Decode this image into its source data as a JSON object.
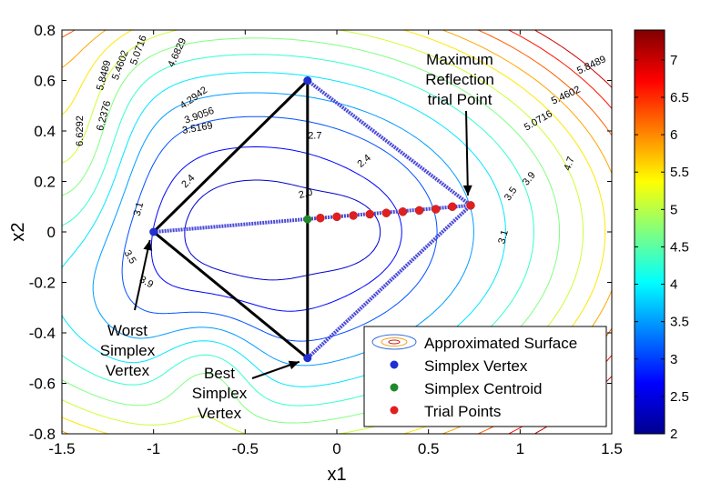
{
  "chart_data": {
    "type": "contour",
    "xlabel": "x1",
    "ylabel": "x2",
    "xlim": [
      -1.5,
      1.5
    ],
    "ylim": [
      -0.8,
      0.8
    ],
    "xticks": [
      -1.5,
      -1,
      -0.5,
      0,
      0.5,
      1,
      1.5
    ],
    "xtick_labels": [
      "-1.5",
      "-1",
      "-0.5",
      "0",
      "0.5",
      "1",
      "1.5"
    ],
    "yticks": [
      0.8,
      0.6,
      0.4,
      0.2,
      0,
      -0.2,
      -0.4,
      -0.6,
      -0.8
    ],
    "ytick_labels": [
      "0.8",
      "0.6",
      "0.4",
      "0.2",
      "0",
      "-0.2",
      "-0.4",
      "-0.6",
      "-0.8"
    ],
    "colorbar": {
      "range": [
        2,
        7.4
      ],
      "ticks": [
        2,
        2.5,
        3,
        3.5,
        4,
        4.5,
        5,
        5.5,
        6,
        6.5,
        7
      ],
      "tick_labels": [
        "2",
        "2.5",
        "3",
        "3.5",
        "4",
        "4.5",
        "5",
        "5.5",
        "6",
        "6.5",
        "7"
      ]
    },
    "contour_labels": [
      "6.6292",
      "6.2376",
      "5.8489",
      "5.4602",
      "5.0716",
      "4.6829",
      "4.2942",
      "3.9056",
      "3.5169",
      "2.7",
      "2.4",
      "2.4",
      "2.0",
      "3.1",
      "3.5",
      "3.9",
      "5.8489",
      "5.4602",
      "5.0716",
      "4.7",
      "3.9",
      "3.5",
      "3.1"
    ],
    "simplex_vertices": [
      {
        "x": -0.16,
        "y": 0.6
      },
      {
        "x": -1.0,
        "y": 0.0
      },
      {
        "x": -0.16,
        "y": -0.5
      }
    ],
    "simplex_centroid": {
      "x": -0.16,
      "y": 0.05
    },
    "max_reflection_point": {
      "x": 0.73,
      "y": 0.105
    },
    "trial_points": [
      {
        "x": -0.09,
        "y": 0.055
      },
      {
        "x": 0.0,
        "y": 0.06
      },
      {
        "x": 0.09,
        "y": 0.065
      },
      {
        "x": 0.18,
        "y": 0.07
      },
      {
        "x": 0.27,
        "y": 0.075
      },
      {
        "x": 0.36,
        "y": 0.08
      },
      {
        "x": 0.45,
        "y": 0.085
      },
      {
        "x": 0.54,
        "y": 0.09
      },
      {
        "x": 0.63,
        "y": 0.1
      },
      {
        "x": 0.73,
        "y": 0.105
      }
    ],
    "annotations": {
      "max_reflection": [
        "Maximum",
        "Reflection",
        "trial Point"
      ],
      "worst_vertex": [
        "Worst",
        "Simplex",
        "Vertex"
      ],
      "best_vertex": [
        "Best",
        "Simplex",
        "Vertex"
      ]
    },
    "legend": {
      "placement": "bottom-right",
      "entries": [
        {
          "label": "Approximated Surface",
          "marker": "contour"
        },
        {
          "label": "Simplex Vertex",
          "marker": "dot",
          "color": "#1f2fd0"
        },
        {
          "label": "Simplex Centroid",
          "marker": "dot",
          "color": "#1f8a2a"
        },
        {
          "label": "Trial Points",
          "marker": "dot",
          "color": "#e02020"
        }
      ]
    },
    "colors": {
      "vertex": "#1f2fd0",
      "centroid": "#1f8a2a",
      "trial": "#e02020",
      "simplex_edge": "#000000",
      "reflected_edge": "#4a4ad8"
    }
  }
}
